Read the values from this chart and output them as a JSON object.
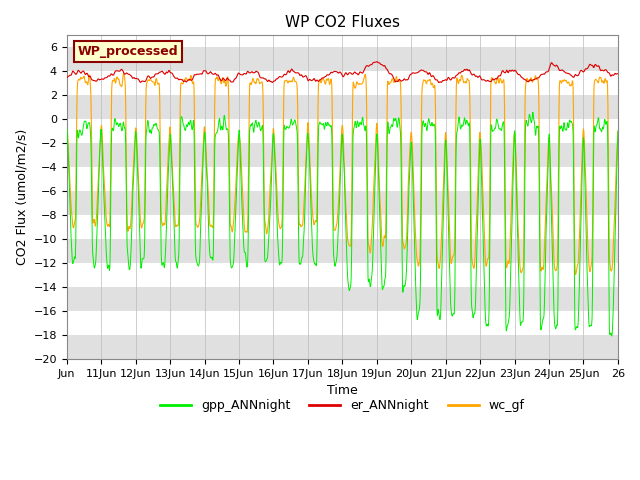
{
  "title": "WP CO2 Fluxes",
  "xlabel": "Time",
  "ylabel_display": "CO2 Flux (umol/m2/s)",
  "ylim": [
    -20,
    7
  ],
  "yticks": [
    -20,
    -18,
    -16,
    -14,
    -12,
    -10,
    -8,
    -6,
    -4,
    -2,
    0,
    2,
    4,
    6
  ],
  "xlim_days": [
    0,
    16
  ],
  "x_tick_labels": [
    "Jun",
    "11Jun",
    "12Jun",
    "13Jun",
    "14Jun",
    "15Jun",
    "16Jun",
    "17Jun",
    "18Jun",
    "19Jun",
    "20Jun",
    "21Jun",
    "22Jun",
    "23Jun",
    "24Jun",
    "25Jun",
    "26"
  ],
  "x_tick_positions": [
    0,
    1,
    2,
    3,
    4,
    5,
    6,
    7,
    8,
    9,
    10,
    11,
    12,
    13,
    14,
    15,
    16
  ],
  "legend_label": "WP_processed",
  "series": {
    "gpp_ANNnight": {
      "color": "#00EE00",
      "label": "gpp_ANNnight"
    },
    "er_ANNnight": {
      "color": "#DD0000",
      "label": "er_ANNnight"
    },
    "wc_gf": {
      "color": "#FFA500",
      "label": "wc_gf"
    }
  },
  "background_color": "#ffffff",
  "band_color": "#e0e0e0",
  "n_days": 16,
  "points_per_day": 96
}
